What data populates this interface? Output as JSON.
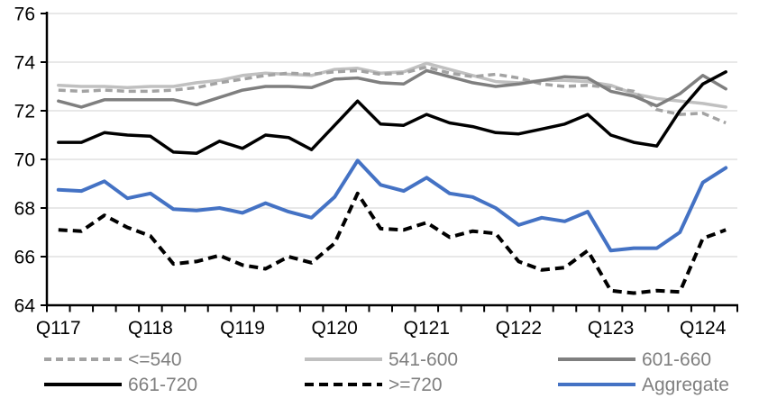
{
  "chart_data": {
    "type": "line",
    "title": "",
    "grid": true,
    "background": "#ffffff",
    "gridline_color": "#d9d9d9",
    "axis_color": "#000000",
    "legend_text_color": "#7f7f7f",
    "x_axis": {
      "n_points": 30,
      "tick_labels": [
        "Q117",
        "Q118",
        "Q119",
        "Q120",
        "Q121",
        "Q122",
        "Q123",
        "Q124"
      ],
      "tick_label_indices": [
        0,
        4,
        8,
        12,
        16,
        20,
        24,
        28
      ]
    },
    "y_axis": {
      "min": 64,
      "max": 76,
      "step": 2,
      "tick_labels": [
        "64",
        "66",
        "68",
        "70",
        "72",
        "74",
        "76"
      ]
    },
    "series": [
      {
        "name": "<=540",
        "color": "#a3a3a3",
        "dash": "8 5",
        "width": 3.5,
        "values": [
          72.85,
          72.8,
          72.85,
          72.8,
          72.8,
          72.85,
          72.95,
          73.15,
          73.3,
          73.45,
          73.55,
          73.5,
          73.6,
          73.65,
          73.5,
          73.55,
          73.8,
          73.55,
          73.4,
          73.5,
          73.35,
          73.1,
          73.0,
          73.05,
          72.95,
          72.8,
          72.05,
          71.85,
          71.9,
          71.5
        ]
      },
      {
        "name": "541-600",
        "color": "#c0c0c0",
        "dash": null,
        "width": 3.5,
        "values": [
          73.05,
          73.0,
          73.0,
          72.95,
          73.0,
          73.0,
          73.15,
          73.25,
          73.45,
          73.55,
          73.5,
          73.45,
          73.7,
          73.75,
          73.55,
          73.6,
          73.95,
          73.7,
          73.45,
          73.2,
          73.15,
          73.25,
          73.25,
          73.2,
          73.05,
          72.7,
          72.5,
          72.4,
          72.3,
          72.15
        ]
      },
      {
        "name": "601-660",
        "color": "#7f7f7f",
        "dash": null,
        "width": 3.5,
        "values": [
          72.4,
          72.15,
          72.45,
          72.45,
          72.45,
          72.45,
          72.25,
          72.55,
          72.85,
          73.0,
          73.0,
          72.95,
          73.3,
          73.35,
          73.15,
          73.1,
          73.65,
          73.4,
          73.15,
          73.0,
          73.1,
          73.25,
          73.4,
          73.35,
          72.8,
          72.6,
          72.2,
          72.7,
          73.45,
          72.9
        ]
      },
      {
        "name": "661-720",
        "color": "#000000",
        "dash": null,
        "width": 3.5,
        "values": [
          70.7,
          70.7,
          71.1,
          71.0,
          70.95,
          70.3,
          70.25,
          70.75,
          70.45,
          71.0,
          70.9,
          70.4,
          71.4,
          72.4,
          71.45,
          71.4,
          71.85,
          71.5,
          71.35,
          71.1,
          71.05,
          71.25,
          71.45,
          71.85,
          71.0,
          70.7,
          70.55,
          72.0,
          73.1,
          73.6
        ]
      },
      {
        "name": ">=720",
        "color": "#000000",
        "dash": "10 6",
        "width": 4,
        "values": [
          67.1,
          67.05,
          67.7,
          67.2,
          66.85,
          65.7,
          65.8,
          66.05,
          65.65,
          65.5,
          66.0,
          65.75,
          66.55,
          68.6,
          67.15,
          67.1,
          67.4,
          66.8,
          67.05,
          66.95,
          65.8,
          65.45,
          65.55,
          66.25,
          64.6,
          64.5,
          64.6,
          64.55,
          66.75,
          67.1
        ]
      },
      {
        "name": "Aggregate",
        "color": "#4472c4",
        "dash": null,
        "width": 4,
        "values": [
          68.75,
          68.7,
          69.1,
          68.4,
          68.6,
          67.95,
          67.9,
          68.0,
          67.8,
          68.2,
          67.85,
          67.6,
          68.45,
          69.95,
          68.95,
          68.7,
          69.25,
          68.6,
          68.45,
          68.0,
          67.3,
          67.6,
          67.45,
          67.85,
          66.25,
          66.35,
          66.35,
          67.0,
          69.05,
          69.65
        ]
      }
    ],
    "legend": {
      "position": "bottom",
      "rows": [
        [
          "<=540",
          "541-600",
          "601-660"
        ],
        [
          "661-720",
          ">=720",
          "Aggregate"
        ]
      ]
    }
  }
}
